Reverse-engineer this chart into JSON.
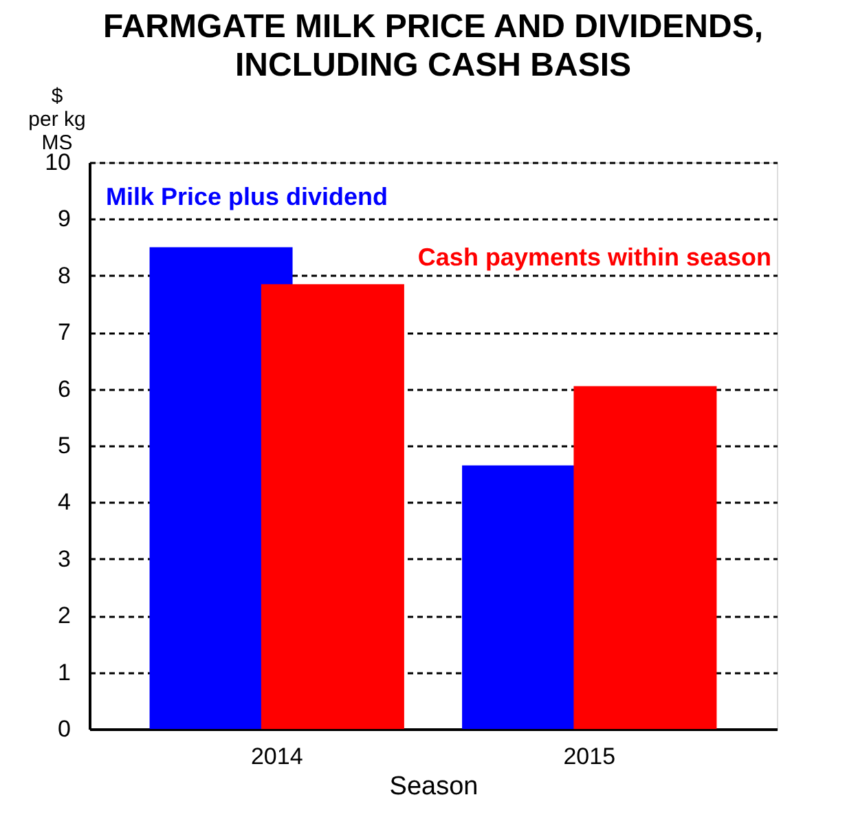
{
  "chart_data": {
    "type": "bar",
    "title": "FARMGATE MILK PRICE AND DIVIDENDS,\nINCLUDING CASH BASIS",
    "ylabel": "$\nper kg\nMS",
    "xlabel": "Season",
    "categories": [
      "2014",
      "2015"
    ],
    "series": [
      {
        "name": "Milk Price plus dividend",
        "color": "#0000ff",
        "values": [
          8.5,
          4.65
        ]
      },
      {
        "name": "Cash payments within season",
        "color": "#ff0000",
        "values": [
          7.85,
          6.05
        ]
      }
    ],
    "ylim": [
      0,
      10
    ],
    "yticks": [
      0,
      1,
      2,
      3,
      4,
      5,
      6,
      7,
      8,
      9,
      10
    ],
    "grid": "y",
    "line_style": "dashed"
  }
}
